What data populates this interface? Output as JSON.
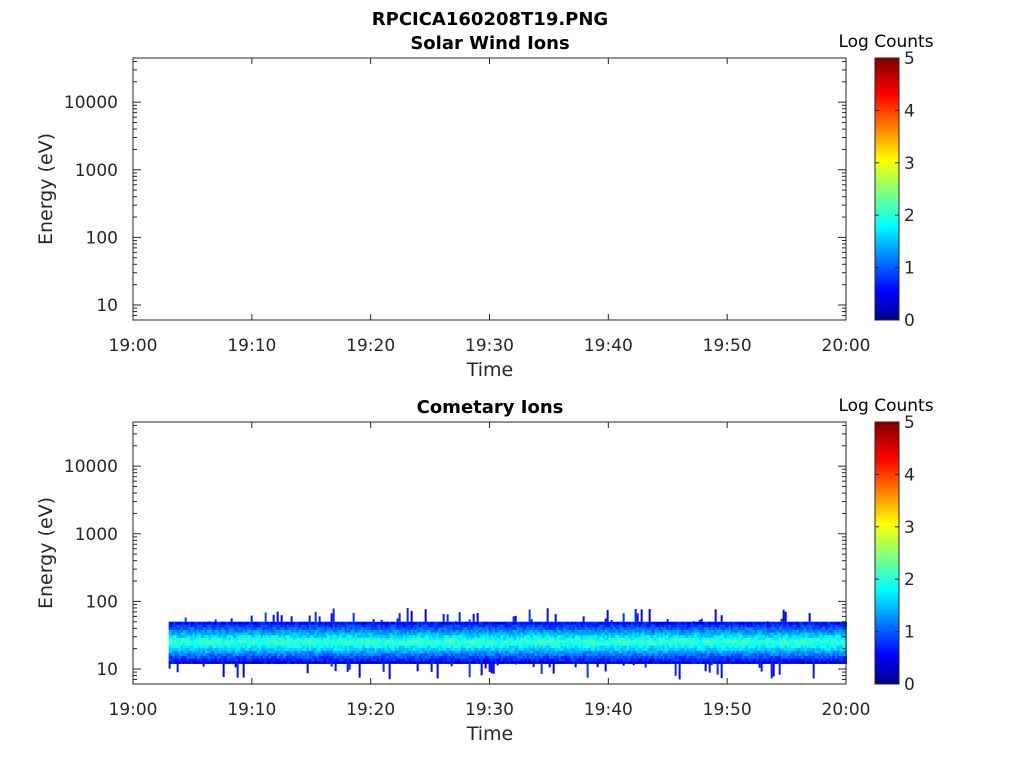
{
  "figure": {
    "title": "RPCICA160208T19.PNG"
  },
  "chart_data": [
    {
      "type": "heatmap",
      "title": "Solar Wind Ions",
      "xlabel": "Time",
      "ylabel": "Energy (eV)",
      "x_ticks": [
        "19:00",
        "19:10",
        "19:20",
        "19:30",
        "19:40",
        "19:50",
        "20:00"
      ],
      "y_ticks": [
        "10",
        "100",
        "1000",
        "10000"
      ],
      "y_scale": "log",
      "xlim": [
        "19:00",
        "20:00"
      ],
      "ylim": [
        6,
        45000
      ],
      "colorbar": {
        "label": "Log Counts",
        "ticks": [
          "0",
          "1",
          "2",
          "3",
          "4",
          "5"
        ],
        "range": [
          0,
          5
        ],
        "colormap": "jet"
      },
      "grid": false,
      "data": []
    },
    {
      "type": "heatmap",
      "title": "Cometary Ions",
      "xlabel": "Time",
      "ylabel": "Energy (eV)",
      "x_ticks": [
        "19:00",
        "19:10",
        "19:20",
        "19:30",
        "19:40",
        "19:50",
        "20:00"
      ],
      "y_ticks": [
        "10",
        "100",
        "1000",
        "10000"
      ],
      "y_scale": "log",
      "xlim": [
        "19:00",
        "20:00"
      ],
      "ylim": [
        6,
        45000
      ],
      "colorbar": {
        "label": "Log Counts",
        "ticks": [
          "0",
          "1",
          "2",
          "3",
          "4",
          "5"
        ],
        "range": [
          0,
          5
        ],
        "colormap": "jet"
      },
      "grid": false,
      "data": {
        "time_start": "19:03",
        "time_end": "20:00",
        "energy_band_eV": [
          12,
          50
        ],
        "peak_energy_eV": 25,
        "peak_log_counts": 2.2,
        "band_edge_log_counts": 0.5,
        "sporadic_extension_eV": [
          7,
          80
        ]
      }
    }
  ]
}
